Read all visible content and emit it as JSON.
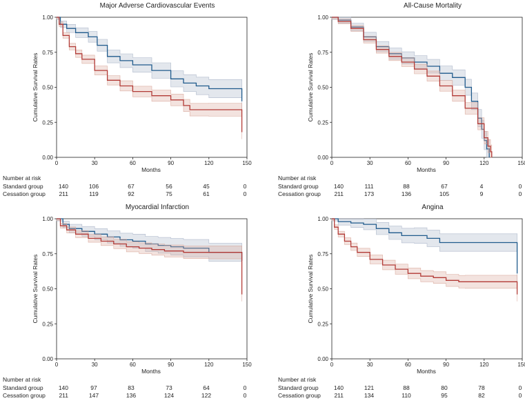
{
  "colors": {
    "standard": "#1f5a8c",
    "standard_band": "#a9b4c8",
    "cessation": "#b23a36",
    "cessation_band": "#d9a79a",
    "axis": "#222222"
  },
  "chart_data": [
    {
      "type": "line",
      "title": "Major Adverse Cardiovascular Events",
      "xlabel": "Months",
      "ylabel": "Cumulative Survival Rates",
      "xlim": [
        0,
        150
      ],
      "ylim": [
        0,
        1
      ],
      "xticks": [
        "0",
        "30",
        "60",
        "90",
        "120",
        "150"
      ],
      "yticks": [
        "0.00",
        "0.25",
        "0.50",
        "0.75",
        "1.00"
      ],
      "series": [
        {
          "name": "Standard group",
          "x": [
            0,
            3,
            8,
            15,
            25,
            32,
            40,
            50,
            60,
            75,
            90,
            100,
            110,
            120,
            146,
            146
          ],
          "values": [
            1.0,
            0.95,
            0.92,
            0.89,
            0.86,
            0.8,
            0.72,
            0.69,
            0.66,
            0.62,
            0.56,
            0.53,
            0.51,
            0.49,
            0.49,
            0.4
          ]
        },
        {
          "name": "Cessation group",
          "x": [
            0,
            2,
            5,
            10,
            15,
            20,
            30,
            40,
            50,
            60,
            75,
            90,
            100,
            105,
            120,
            146,
            146
          ],
          "values": [
            1.0,
            0.95,
            0.87,
            0.79,
            0.74,
            0.7,
            0.62,
            0.55,
            0.51,
            0.47,
            0.44,
            0.41,
            0.37,
            0.34,
            0.34,
            0.34,
            0.18
          ]
        }
      ],
      "risk_table": {
        "header": "Number at risk",
        "rows": [
          {
            "label": "Standard group",
            "counts": [
              "140",
              "106",
              "67",
              "56",
              "45",
              "0"
            ]
          },
          {
            "label": "Cessation group",
            "counts": [
              "211",
              "119",
              "92",
              "75",
              "61",
              "0"
            ]
          }
        ]
      }
    },
    {
      "type": "line",
      "title": "All-Cause Mortality",
      "xlabel": "Months",
      "ylabel": "Cumulative Survival Rates",
      "xlim": [
        0,
        150
      ],
      "ylim": [
        0,
        1
      ],
      "xticks": [
        "0",
        "30",
        "60",
        "90",
        "120",
        "150"
      ],
      "yticks": [
        "0.00",
        "0.25",
        "0.50",
        "0.75",
        "1.00"
      ],
      "series": [
        {
          "name": "Standard group",
          "x": [
            0,
            5,
            15,
            25,
            35,
            45,
            55,
            65,
            75,
            85,
            95,
            105,
            110,
            115,
            118,
            120,
            122,
            124
          ],
          "values": [
            1.0,
            0.98,
            0.93,
            0.86,
            0.79,
            0.74,
            0.71,
            0.68,
            0.65,
            0.6,
            0.57,
            0.5,
            0.4,
            0.28,
            0.2,
            0.12,
            0.06,
            0.0
          ]
        },
        {
          "name": "Cessation group",
          "x": [
            0,
            5,
            15,
            25,
            35,
            45,
            55,
            65,
            75,
            85,
            95,
            105,
            115,
            120,
            123,
            125,
            126
          ],
          "values": [
            1.0,
            0.97,
            0.92,
            0.84,
            0.77,
            0.72,
            0.68,
            0.63,
            0.58,
            0.51,
            0.44,
            0.35,
            0.24,
            0.14,
            0.08,
            0.04,
            0.0
          ]
        }
      ],
      "risk_table": {
        "header": "Number at risk",
        "rows": [
          {
            "label": "Standard group",
            "counts": [
              "140",
              "111",
              "88",
              "67",
              "4",
              "0"
            ]
          },
          {
            "label": "Cessation group",
            "counts": [
              "211",
              "173",
              "136",
              "105",
              "9",
              "0"
            ]
          }
        ]
      }
    },
    {
      "type": "line",
      "title": "Myocardial Infarction",
      "xlabel": "Months",
      "ylabel": "Cumulative Survival Rates",
      "xlim": [
        0,
        150
      ],
      "ylim": [
        0,
        1
      ],
      "xticks": [
        "0",
        "30",
        "60",
        "90",
        "120",
        "150"
      ],
      "yticks": [
        "0.00",
        "0.25",
        "0.50",
        "0.75",
        "1.00"
      ],
      "series": [
        {
          "name": "Standard group",
          "x": [
            0,
            5,
            10,
            20,
            30,
            40,
            50,
            60,
            70,
            80,
            90,
            100,
            120,
            146,
            146
          ],
          "values": [
            1.0,
            0.96,
            0.93,
            0.91,
            0.89,
            0.87,
            0.85,
            0.84,
            0.82,
            0.81,
            0.8,
            0.79,
            0.76,
            0.76,
            0.7
          ]
        },
        {
          "name": "Cessation group",
          "x": [
            0,
            3,
            8,
            15,
            25,
            35,
            45,
            55,
            65,
            75,
            85,
            100,
            120,
            146,
            146
          ],
          "values": [
            1.0,
            0.95,
            0.92,
            0.89,
            0.86,
            0.84,
            0.82,
            0.8,
            0.79,
            0.78,
            0.77,
            0.76,
            0.76,
            0.76,
            0.46
          ]
        }
      ],
      "risk_table": {
        "header": "Number at risk",
        "rows": [
          {
            "label": "Standard group",
            "counts": [
              "140",
              "97",
              "83",
              "73",
              "64",
              "0"
            ]
          },
          {
            "label": "Cessation group",
            "counts": [
              "211",
              "147",
              "136",
              "124",
              "122",
              "0"
            ]
          }
        ]
      }
    },
    {
      "type": "line",
      "title": "Angina",
      "xlabel": "Months",
      "ylabel": "Cumulative Survival Rates",
      "xlim": [
        0,
        150
      ],
      "ylim": [
        0,
        1
      ],
      "xticks": [
        "0",
        "30",
        "60",
        "90",
        "120",
        "150"
      ],
      "yticks": [
        "0.00",
        "0.25",
        "0.50",
        "0.75",
        "1.00"
      ],
      "series": [
        {
          "name": "Standard group",
          "x": [
            0,
            5,
            15,
            25,
            35,
            45,
            55,
            65,
            75,
            85,
            146,
            146
          ],
          "values": [
            1.0,
            0.98,
            0.97,
            0.96,
            0.93,
            0.9,
            0.88,
            0.88,
            0.86,
            0.83,
            0.83,
            0.61
          ]
        },
        {
          "name": "Cessation group",
          "x": [
            0,
            2,
            5,
            10,
            15,
            20,
            30,
            40,
            50,
            60,
            70,
            80,
            90,
            100,
            105,
            146,
            146
          ],
          "values": [
            1.0,
            0.94,
            0.89,
            0.84,
            0.8,
            0.76,
            0.71,
            0.67,
            0.64,
            0.61,
            0.59,
            0.58,
            0.56,
            0.55,
            0.55,
            0.55,
            0.46
          ]
        }
      ],
      "risk_table": {
        "header": "Number at risk",
        "rows": [
          {
            "label": "Standard group",
            "counts": [
              "140",
              "121",
              "88",
              "80",
              "78",
              "0"
            ]
          },
          {
            "label": "Cessation group",
            "counts": [
              "211",
              "134",
              "110",
              "95",
              "82",
              "0"
            ]
          }
        ]
      }
    }
  ]
}
